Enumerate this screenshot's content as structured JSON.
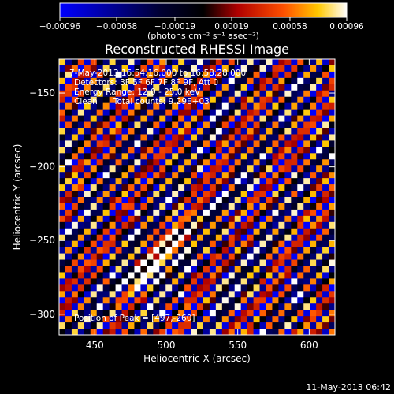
{
  "colorbar": {
    "ticks": [
      "-0.00096",
      "-0.00058",
      "-0.00019",
      "0.00019",
      "0.00058",
      "0.00096"
    ],
    "tick_values": [
      -0.00096,
      -0.00058,
      -0.00019,
      0.00019,
      0.00058,
      0.00096
    ],
    "range": [
      -0.00096,
      0.00096
    ],
    "units_label": "(photons cm⁻² s⁻¹ asec⁻²)"
  },
  "chart_data": {
    "type": "heatmap",
    "title": "Reconstructed RHESSI Image",
    "xlabel": "Heliocentric X (arcsec)",
    "ylabel": "Heliocentric Y (arcsec)",
    "xlim": [
      425,
      618
    ],
    "ylim": [
      -314,
      -127
    ],
    "xticks": [
      450,
      500,
      550,
      600
    ],
    "yticks": [
      -300,
      -250,
      -200,
      -150
    ],
    "grid": "off",
    "colormap": [
      "#0000ff",
      "#000000",
      "#ff0000",
      "#ffcc00",
      "#ffffff"
    ],
    "peak": {
      "x": 497,
      "y": -260
    },
    "pattern": "diagonal fringe modulation running lower-left to upper-right with bright source near peak",
    "annotations": [
      "7-May-2013 16:54:16.000 to 16:58:28.000",
      "Detectors: 3F 5F 6F 7F 8F 9F, Att 0",
      "Energy Range: 12.0 - 25.0 keV",
      "Clean      Total counts: 9.29E+03",
      "Position of Peak = [497,-260]"
    ]
  },
  "footer": {
    "timestamp": "11-May-2013 06:42"
  }
}
